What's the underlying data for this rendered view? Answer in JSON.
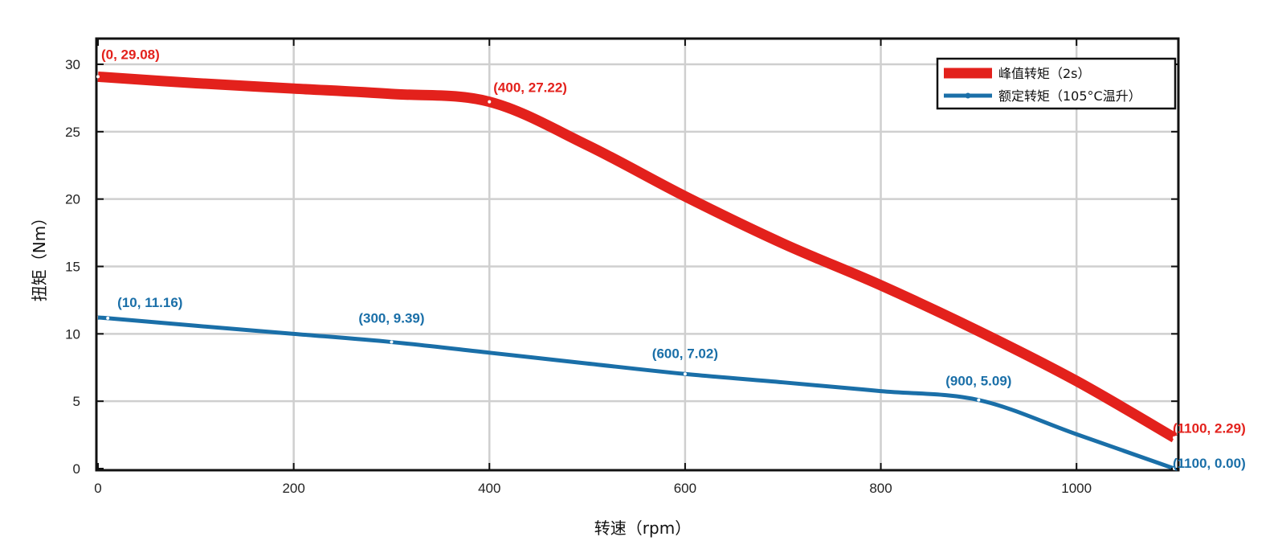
{
  "chart_data": {
    "type": "line",
    "xlabel": "转速（rpm）",
    "ylabel": "扭矩（Nm）",
    "xlim": [
      0,
      1100
    ],
    "ylim": [
      0,
      32
    ],
    "xticks": [
      0,
      200,
      400,
      600,
      800,
      1000
    ],
    "yticks": [
      0,
      5,
      10,
      15,
      20,
      25,
      30
    ],
    "xtick_labels": [
      "0",
      "200",
      "400",
      "600",
      "800",
      "1000"
    ],
    "ytick_labels": [
      "0",
      "5",
      "10",
      "15",
      "20",
      "25",
      "30"
    ],
    "grid": true,
    "legend_position": "top-right",
    "series": [
      {
        "name": "峰值转矩（2s）",
        "color": "#e3211c",
        "x": [
          0,
          100,
          200,
          300,
          400,
          500,
          600,
          700,
          800,
          900,
          1000,
          1100
        ],
        "y": [
          29.08,
          28.6,
          28.2,
          27.8,
          27.22,
          24.0,
          20.2,
          16.7,
          13.6,
          10.2,
          6.5,
          2.29
        ]
      },
      {
        "name": "额定转矩（105°C温升）",
        "color": "#1a6fa8",
        "x": [
          0,
          10,
          100,
          200,
          300,
          400,
          500,
          600,
          700,
          800,
          900,
          1000,
          1100
        ],
        "y": [
          11.2,
          11.16,
          10.6,
          10.0,
          9.39,
          8.6,
          7.8,
          7.02,
          6.4,
          5.75,
          5.09,
          2.55,
          0.0
        ]
      }
    ],
    "annotations": [
      {
        "text": "(0, 29.08)",
        "x": 0,
        "y": 29.08,
        "series": 0
      },
      {
        "text": "(400, 27.22)",
        "x": 400,
        "y": 27.22,
        "series": 0
      },
      {
        "text": "(1100, 2.29)",
        "x": 1100,
        "y": 2.29,
        "series": 0
      },
      {
        "text": "(10, 11.16)",
        "x": 10,
        "y": 11.16,
        "series": 1
      },
      {
        "text": "(300, 9.39)",
        "x": 300,
        "y": 9.39,
        "series": 1
      },
      {
        "text": "(600, 7.02)",
        "x": 600,
        "y": 7.02,
        "series": 1
      },
      {
        "text": "(900, 5.09)",
        "x": 900,
        "y": 5.09,
        "series": 1
      },
      {
        "text": "(1100, 0.00)",
        "x": 1100,
        "y": 0.0,
        "series": 1
      }
    ]
  }
}
